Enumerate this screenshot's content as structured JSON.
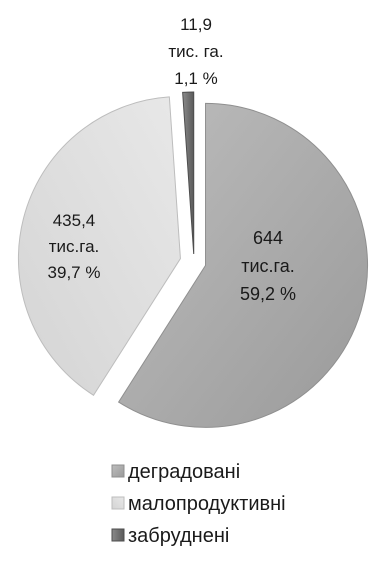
{
  "chart_data": {
    "type": "pie",
    "series": [
      {
        "name": "деградовані",
        "value": 644,
        "percent": 59.2,
        "label_lines": [
          "644",
          "тис.га.",
          "59,2 %"
        ],
        "color": "#a8a8a8"
      },
      {
        "name": "малопродуктивні",
        "value": 435.4,
        "percent": 39.7,
        "label_lines": [
          "435,4",
          "тис.га.",
          "39,7 %"
        ],
        "color": "#dcdcdc"
      },
      {
        "name": "забруднені",
        "value": 11.9,
        "percent": 1.1,
        "label_lines": [
          "11,9",
          "тис. га.",
          "1,1 %"
        ],
        "color": "#6e6e6e"
      }
    ],
    "exploded": true,
    "legend_position": "bottom"
  }
}
